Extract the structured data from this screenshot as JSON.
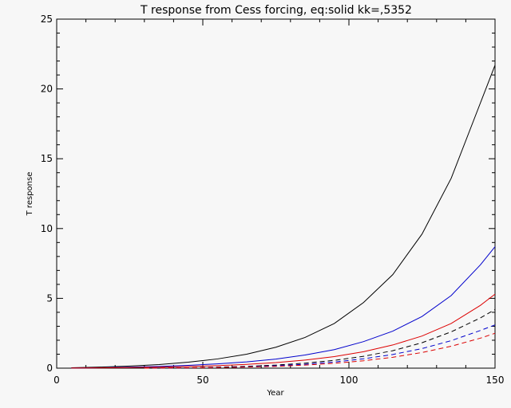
{
  "chart_data": {
    "type": "line",
    "title": "T response from Cess forcing, eq:solid kk=,5352",
    "xlabel": "Year",
    "ylabel": "T response",
    "xlim": [
      0,
      150
    ],
    "ylim": [
      0,
      25
    ],
    "x_ticks": [
      0,
      50,
      100,
      150
    ],
    "y_ticks": [
      0,
      5,
      10,
      15,
      20,
      25
    ],
    "grid": false,
    "legend": "none",
    "series": [
      {
        "color": "#000000",
        "dash": "solid",
        "x": [
          5,
          15,
          25,
          35,
          45,
          55,
          65,
          75,
          85,
          95,
          105,
          115,
          125,
          135,
          145,
          150
        ],
        "y": [
          0.03,
          0.08,
          0.15,
          0.26,
          0.43,
          0.66,
          1.0,
          1.5,
          2.2,
          3.2,
          4.7,
          6.7,
          9.6,
          13.6,
          19.0,
          21.7
        ]
      },
      {
        "color": "#0000cc",
        "dash": "solid",
        "x": [
          5,
          15,
          25,
          35,
          45,
          55,
          65,
          75,
          85,
          95,
          105,
          115,
          125,
          135,
          145,
          150
        ],
        "y": [
          0.01,
          0.03,
          0.07,
          0.12,
          0.2,
          0.31,
          0.45,
          0.65,
          0.94,
          1.33,
          1.9,
          2.65,
          3.7,
          5.2,
          7.4,
          8.7
        ]
      },
      {
        "color": "#dd0000",
        "dash": "solid",
        "x": [
          5,
          15,
          25,
          35,
          45,
          55,
          65,
          75,
          85,
          95,
          105,
          115,
          125,
          135,
          145,
          150
        ],
        "y": [
          0.01,
          0.02,
          0.04,
          0.07,
          0.12,
          0.18,
          0.27,
          0.4,
          0.58,
          0.83,
          1.18,
          1.66,
          2.3,
          3.2,
          4.5,
          5.3
        ]
      },
      {
        "color": "#000000",
        "dash": "dashed",
        "x": [
          30,
          45,
          55,
          65,
          75,
          85,
          95,
          105,
          115,
          125,
          135,
          145,
          150
        ],
        "y": [
          0.0,
          0.03,
          0.07,
          0.13,
          0.22,
          0.36,
          0.56,
          0.85,
          1.25,
          1.82,
          2.6,
          3.6,
          4.2
        ]
      },
      {
        "color": "#0000cc",
        "dash": "dashed",
        "x": [
          30,
          45,
          55,
          65,
          75,
          85,
          95,
          105,
          115,
          125,
          135,
          145,
          150
        ],
        "y": [
          0.0,
          0.02,
          0.05,
          0.1,
          0.17,
          0.28,
          0.44,
          0.67,
          0.98,
          1.4,
          1.97,
          2.7,
          3.1
        ]
      },
      {
        "color": "#dd0000",
        "dash": "dashed",
        "x": [
          30,
          45,
          55,
          65,
          75,
          85,
          95,
          105,
          115,
          125,
          135,
          145,
          150
        ],
        "y": [
          0.0,
          0.02,
          0.04,
          0.08,
          0.13,
          0.22,
          0.35,
          0.53,
          0.78,
          1.12,
          1.57,
          2.15,
          2.5
        ]
      }
    ]
  }
}
